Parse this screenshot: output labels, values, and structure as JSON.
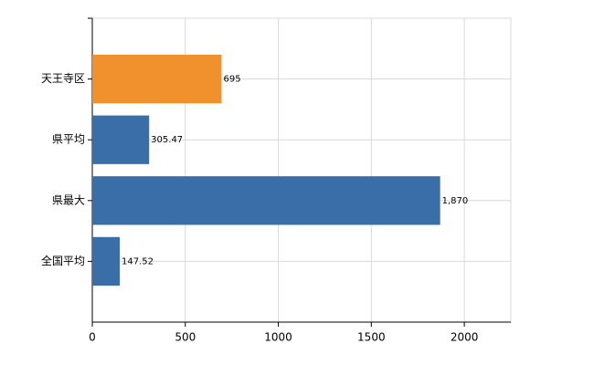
{
  "chart_data": {
    "type": "bar",
    "orientation": "horizontal",
    "categories": [
      "天王寺区",
      "県平均",
      "県最大",
      "全国平均"
    ],
    "values": [
      695,
      305.47,
      1870,
      147.52
    ],
    "value_labels": [
      "695",
      "305.47",
      "1,870",
      "147.52"
    ],
    "colors": [
      "#f0912d",
      "#3a6ea8",
      "#3a6ea8",
      "#3a6ea8"
    ],
    "xlim": [
      0,
      2250
    ],
    "xticks": [
      0,
      500,
      1000,
      1500,
      2000
    ],
    "grid": true
  }
}
